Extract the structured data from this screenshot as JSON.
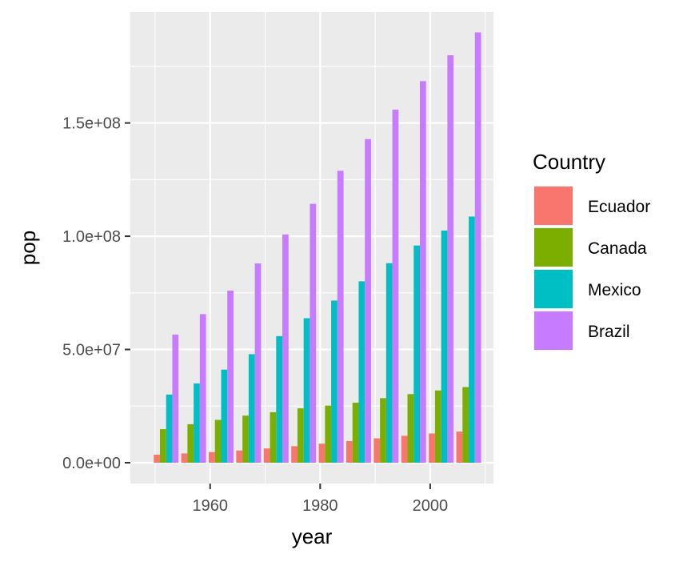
{
  "chart_data": {
    "type": "bar",
    "xlabel": "year",
    "ylabel": "pop",
    "legend_title": "Country",
    "legend_position": "right",
    "xlim": [
      1945.5,
      2011.5
    ],
    "ylim": [
      -9200000,
      199000000.0
    ],
    "x_ticks": [
      1960,
      1980,
      2000
    ],
    "x_tick_labels": [
      "1960",
      "1980",
      "2000"
    ],
    "y_ticks": [
      0,
      50000000,
      100000000,
      150000000
    ],
    "y_tick_labels": [
      "0.0e+00",
      "5.0e+07",
      "1.0e+08",
      "1.5e+08"
    ],
    "categories": [
      1952,
      1957,
      1962,
      1967,
      1972,
      1977,
      1982,
      1987,
      1992,
      1997,
      2002,
      2007
    ],
    "series": [
      {
        "name": "Ecuador",
        "color": "#F8766D",
        "values": [
          3550000,
          4100000,
          4700000,
          5400000,
          6300000,
          7300000,
          8400000,
          9550000,
          10750000,
          11900000,
          12900000,
          13750000
        ]
      },
      {
        "name": "Canada",
        "color": "#7CAE00",
        "values": [
          14800000,
          17000000,
          18900000,
          20800000,
          22300000,
          24000000,
          25200000,
          26500000,
          28500000,
          30300000,
          31900000,
          33400000
        ]
      },
      {
        "name": "Mexico",
        "color": "#00BFC4",
        "values": [
          30100000,
          35000000,
          41100000,
          47900000,
          55900000,
          63800000,
          71600000,
          80100000,
          88100000,
          95900000,
          102500000,
          108700000
        ]
      },
      {
        "name": "Brazil",
        "color": "#C77CFF",
        "values": [
          56600000,
          65600000,
          76000000,
          88000000,
          100800000,
          114300000,
          128900000,
          142900000,
          155900000,
          168500000,
          179900000,
          190000000
        ]
      }
    ]
  }
}
